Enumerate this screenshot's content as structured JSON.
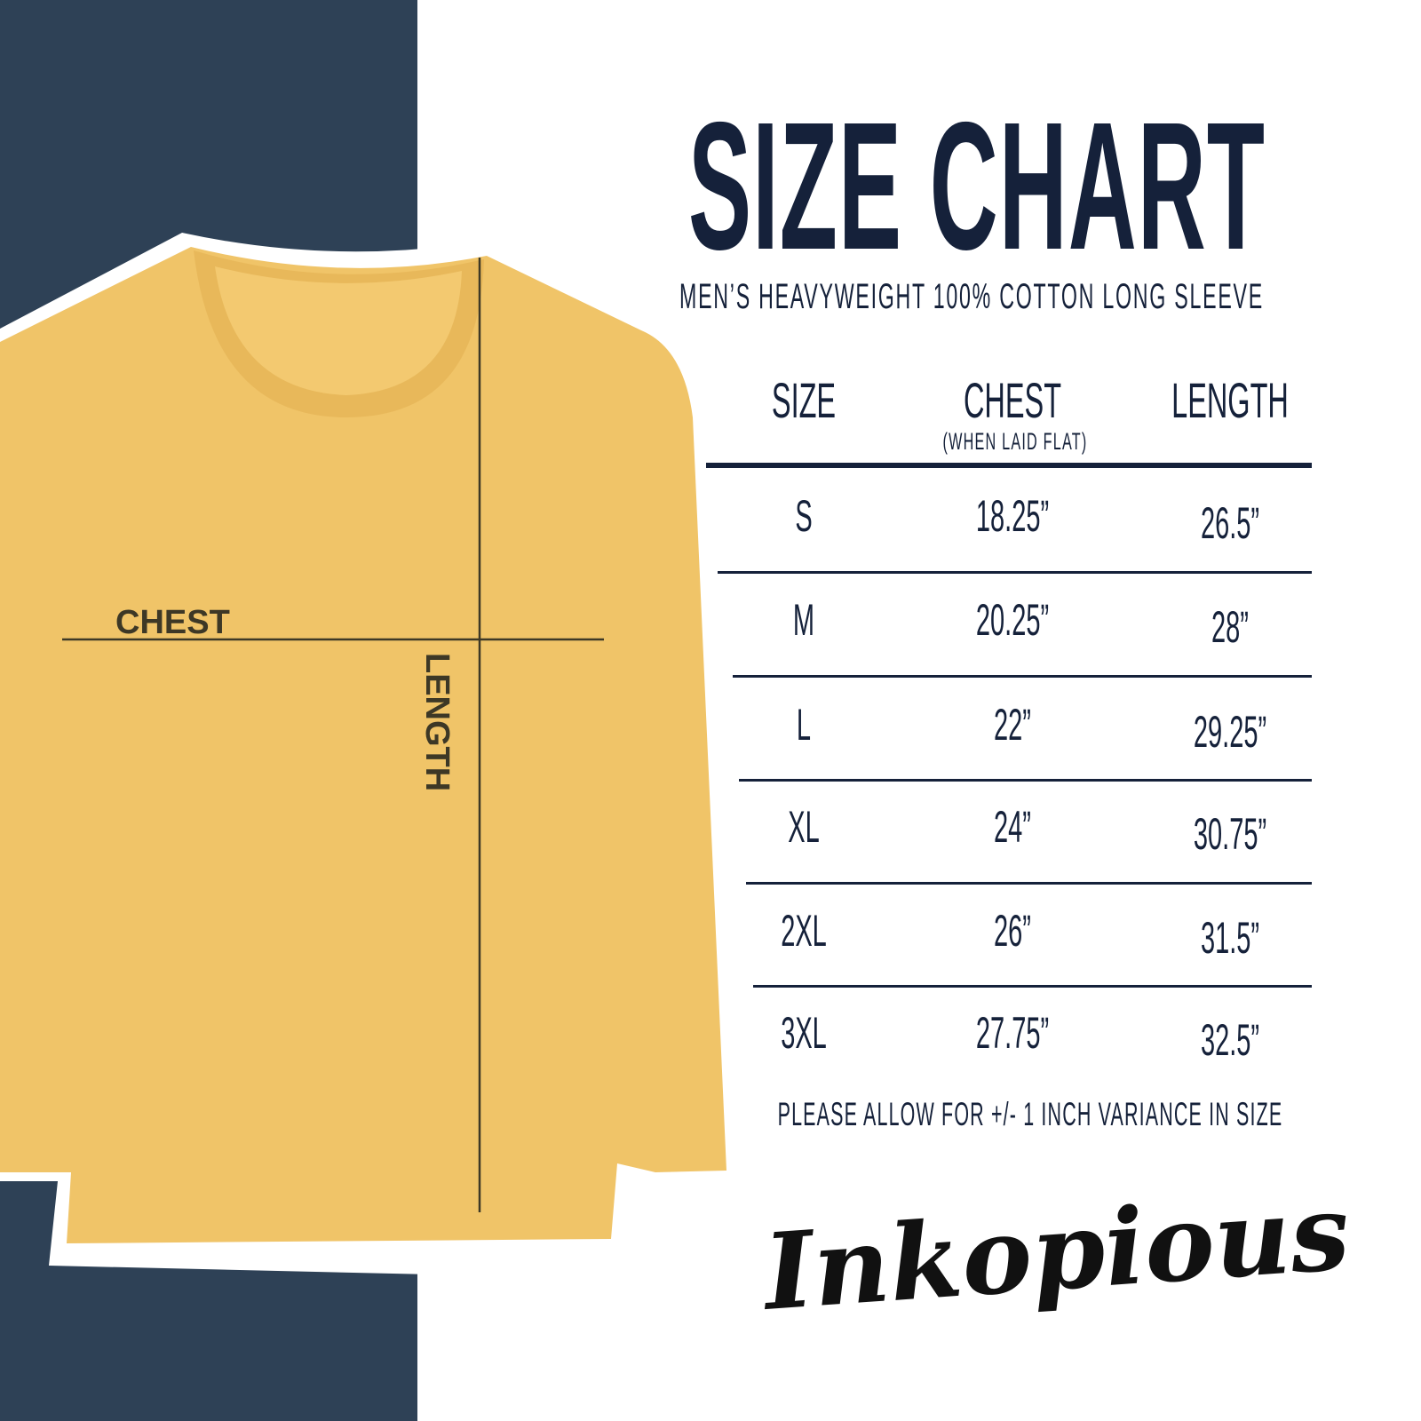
{
  "title": "SIZE CHART",
  "subtitle": "MEN’S HEAVYWEIGHT 100% COTTON LONG SLEEVE",
  "colors": {
    "navy_panel": "#2e4156",
    "text": "#15213a",
    "shirt": "#f0c468"
  },
  "diagram": {
    "chest_label": "CHEST",
    "length_label": "LENGTH"
  },
  "table": {
    "headers": {
      "size": "SIZE",
      "chest": "CHEST",
      "chest_note": "(WHEN LAID FLAT)",
      "length": "LENGTH"
    },
    "rows": [
      {
        "size": "S",
        "chest": "18.25”",
        "length": "26.5”"
      },
      {
        "size": "M",
        "chest": "20.25”",
        "length": "28”"
      },
      {
        "size": "L",
        "chest": "22”",
        "length": "29.25”"
      },
      {
        "size": "XL",
        "chest": "24”",
        "length": "30.75”"
      },
      {
        "size": "2XL",
        "chest": "26”",
        "length": "31.5”"
      },
      {
        "size": "3XL",
        "chest": "27.75”",
        "length": "32.5”"
      }
    ]
  },
  "note": "PLEASE ALLOW FOR +/- 1 INCH VARIANCE IN SIZE",
  "logo": "Inkopious"
}
